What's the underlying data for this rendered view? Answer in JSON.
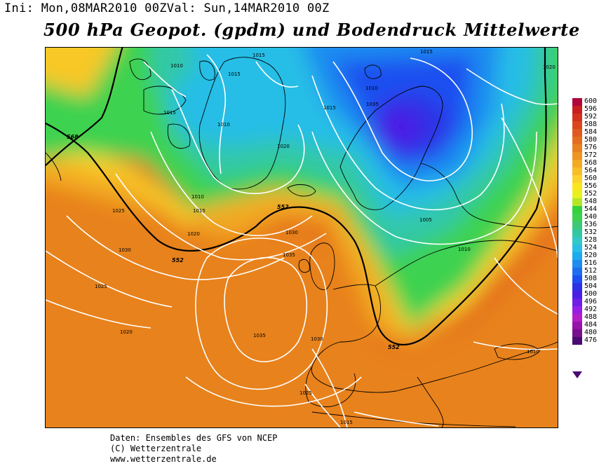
{
  "header": {
    "init_label": "Ini:",
    "init_value": "Mon,08MAR2010 00Z",
    "valid_label": "Val:",
    "valid_value": "Sun,14MAR2010 00Z"
  },
  "title": "500 hPa Geopot. (gpdm) und Bodendruck Mittelwerte",
  "legend": {
    "levels": [
      "600",
      "596",
      "592",
      "588",
      "584",
      "580",
      "576",
      "572",
      "568",
      "564",
      "560",
      "556",
      "552",
      "548",
      "544",
      "540",
      "536",
      "532",
      "528",
      "524",
      "520",
      "516",
      "512",
      "508",
      "504",
      "500",
      "496",
      "492",
      "488",
      "484",
      "480",
      "476"
    ],
    "colors": [
      "#b0063c",
      "#c81e1e",
      "#d2321e",
      "#dc461e",
      "#e05a1e",
      "#e46e1e",
      "#e8821e",
      "#ee9620",
      "#f4aa24",
      "#f8be28",
      "#fcd22c",
      "#fae61e",
      "#e8f01e",
      "#b4e628",
      "#32d23c",
      "#3cd250",
      "#3cc878",
      "#32c8a0",
      "#32c8c8",
      "#28bee6",
      "#1eaaf0",
      "#1e8cf0",
      "#1e6ef0",
      "#1e50f0",
      "#2d32e6",
      "#4b1ee6",
      "#6e1ee6",
      "#961ee6",
      "#b41ec8",
      "#9614aa",
      "#780f8c",
      "#4b0a72"
    ]
  },
  "map": {
    "contour_568_label": "568",
    "contour_552_label": "552",
    "isobar_labels": [
      "1015",
      "1010",
      "1015",
      "1015",
      "1010",
      "1020",
      "1010",
      "1015",
      "1025",
      "1020",
      "1030",
      "1025",
      "1020",
      "1035",
      "1030",
      "1035",
      "1030",
      "1025",
      "1015",
      "1015",
      "1010",
      "1005",
      "1035",
      "1015",
      "1010",
      "1010",
      "1020"
    ]
  },
  "credits": {
    "line1": "Daten: Ensembles des GFS von NCEP",
    "line2": "(C) Wetterzentrale",
    "line3": "www.wetterzentrale.de"
  }
}
